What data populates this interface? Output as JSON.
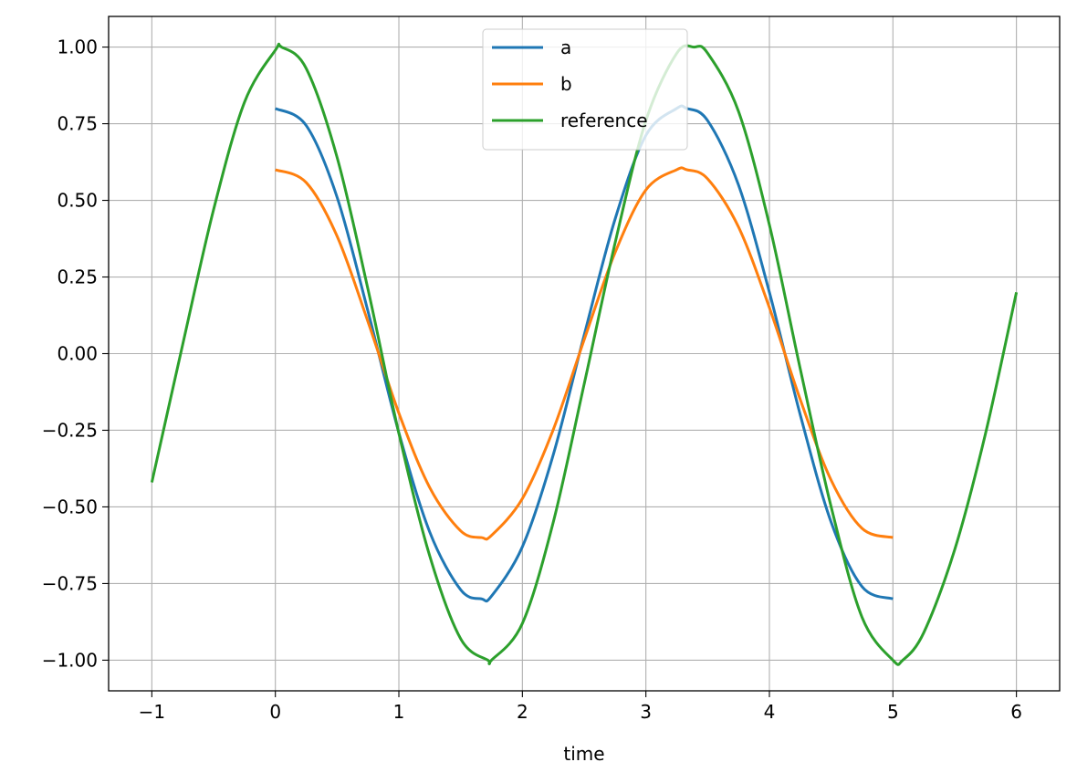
{
  "chart_data": {
    "type": "line",
    "title": "",
    "xlabel": "time",
    "ylabel": "",
    "xlim": [
      -1.35,
      6.35
    ],
    "ylim": [
      -1.1,
      1.1
    ],
    "xticks": [
      -1,
      0,
      1,
      2,
      3,
      4,
      5,
      6
    ],
    "xtick_labels": [
      "−1",
      "0",
      "1",
      "2",
      "3",
      "4",
      "5",
      "6"
    ],
    "yticks": [
      1.0,
      0.75,
      0.5,
      0.25,
      0.0,
      -0.25,
      -0.5,
      -0.75,
      -1.0
    ],
    "ytick_labels": [
      "1.00",
      "0.75",
      "0.50",
      "0.25",
      "0.00",
      "−0.25",
      "−0.50",
      "−0.75",
      "−1.00"
    ],
    "grid": true,
    "legend_position": "upper center",
    "series": [
      {
        "name": "a",
        "color": "#1f77b4",
        "x": [
          0,
          0.25,
          0.5,
          0.75,
          1,
          1.25,
          1.5,
          1.67,
          1.75,
          2,
          2.25,
          2.5,
          2.75,
          3,
          3.25,
          3.33,
          3.5,
          3.75,
          4,
          4.25,
          4.5,
          4.75,
          5
        ],
        "y": [
          0.8,
          0.744,
          0.51,
          0.138,
          -0.258,
          -0.582,
          -0.77,
          -0.8,
          -0.791,
          -0.63,
          -0.33,
          0.06,
          0.438,
          0.712,
          0.8,
          0.8,
          0.76,
          0.55,
          0.2,
          -0.2,
          -0.55,
          -0.76,
          -0.8
        ]
      },
      {
        "name": "b",
        "color": "#ff7f0e",
        "x": [
          0,
          0.25,
          0.5,
          0.75,
          1,
          1.25,
          1.5,
          1.67,
          1.75,
          2,
          2.25,
          2.5,
          2.75,
          3,
          3.25,
          3.33,
          3.5,
          3.75,
          4,
          4.25,
          4.5,
          4.75,
          5
        ],
        "y": [
          0.6,
          0.558,
          0.383,
          0.104,
          -0.194,
          -0.437,
          -0.578,
          -0.6,
          -0.593,
          -0.473,
          -0.248,
          0.045,
          0.329,
          0.534,
          0.6,
          0.6,
          0.57,
          0.413,
          0.15,
          -0.15,
          -0.413,
          -0.57,
          -0.6
        ]
      },
      {
        "name": "reference",
        "color": "#2ca02c",
        "x": [
          -1,
          -0.75,
          -0.5,
          -0.25,
          0,
          0.05,
          0.25,
          0.5,
          0.75,
          1,
          1.25,
          1.5,
          1.72,
          1.75,
          2,
          2.25,
          2.5,
          2.75,
          3,
          3.25,
          3.39,
          3.5,
          3.75,
          4,
          4.25,
          4.5,
          4.75,
          5,
          5.08,
          5.25,
          5.5,
          5.75,
          6
        ],
        "y": [
          -0.42,
          0.03,
          0.47,
          0.82,
          0.99,
          1.0,
          0.93,
          0.64,
          0.21,
          -0.26,
          -0.66,
          -0.93,
          -1.0,
          -1.0,
          -0.88,
          -0.55,
          -0.1,
          0.36,
          0.76,
          0.98,
          1.0,
          0.98,
          0.79,
          0.42,
          -0.05,
          -0.5,
          -0.86,
          -1.0,
          -1.0,
          -0.91,
          -0.64,
          -0.26,
          0.2
        ]
      }
    ]
  }
}
